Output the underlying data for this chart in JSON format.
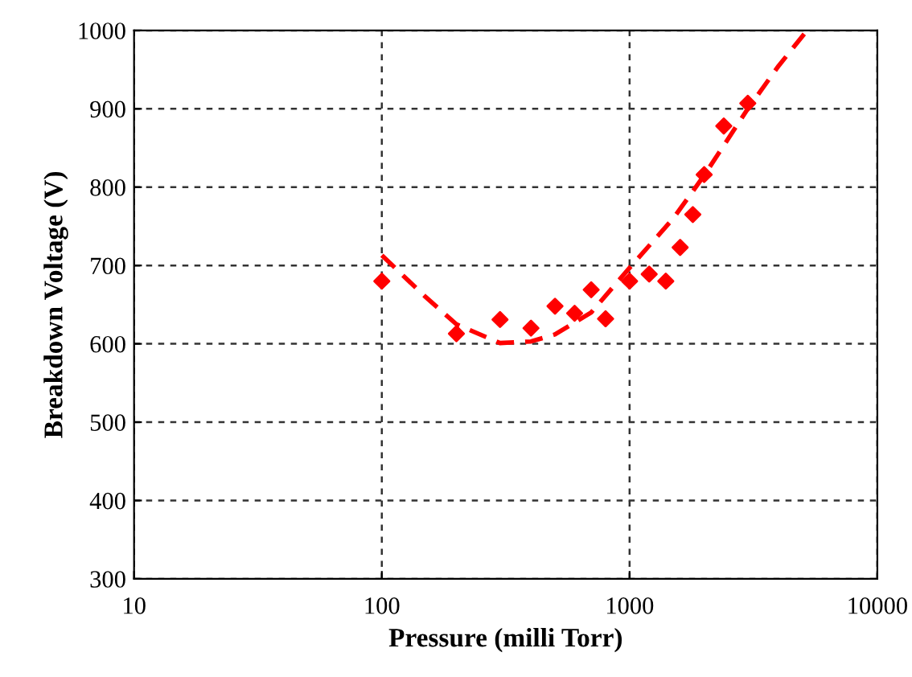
{
  "chart_data": {
    "type": "scatter",
    "xlabel": "Pressure (milli Torr)",
    "ylabel": "Breakdown Voltage (V)",
    "xlim": [
      10,
      10000
    ],
    "xticks": [
      10,
      100,
      1000,
      10000
    ],
    "ylim": [
      300,
      1000
    ],
    "yticks": [
      300,
      400,
      500,
      600,
      700,
      800,
      900,
      1000
    ],
    "log": "x",
    "grid": true,
    "legend": false,
    "series": [
      {
        "color": "#ff0000",
        "marker": "diamond",
        "x": [
          100,
          200,
          300,
          400,
          500,
          600,
          700,
          800,
          1000,
          1200,
          1400,
          1600,
          1800,
          2000,
          2400,
          3000
        ],
        "values": [
          680,
          613,
          631,
          620,
          648,
          639,
          669,
          632,
          680,
          689,
          680,
          723,
          765,
          816,
          878,
          907
        ]
      },
      {
        "type": "line",
        "color": "#ff0000",
        "line_style": "dashed",
        "marker": "none",
        "x": [
          100,
          150,
          200,
          300,
          400,
          500,
          700,
          1000,
          1500,
          2000,
          3000,
          4000,
          5200
        ],
        "values": [
          713,
          660,
          625,
          601,
          603,
          612,
          640,
          697,
          760,
          815,
          900,
          955,
          1000
        ]
      }
    ]
  }
}
